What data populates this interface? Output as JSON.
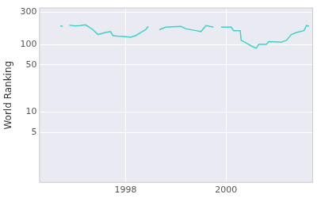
{
  "chart_data": {
    "type": "line",
    "y_label": "World Ranking",
    "log": "y",
    "grid": true,
    "color": "#40d0c8",
    "x": [
      1996.7,
      1996.75,
      1996.8,
      1996.88,
      1997.0,
      1997.1,
      1997.2,
      1997.25,
      1997.35,
      1997.45,
      1997.6,
      1997.7,
      1997.75,
      1997.85,
      1998.0,
      1998.1,
      1998.2,
      1998.3,
      1998.4,
      1998.45,
      1998.55,
      1998.67,
      1998.8,
      1999.1,
      1999.2,
      1999.4,
      1999.5,
      1999.6,
      1999.75,
      1999.82,
      1999.9,
      2000.1,
      2000.15,
      2000.28,
      2000.3,
      2000.45,
      2000.5,
      2000.6,
      2000.65,
      2000.8,
      2000.85,
      2001.1,
      2001.2,
      2001.3,
      2001.4,
      2001.55,
      2001.6,
      2001.65
    ],
    "values": [
      188,
      185,
      null,
      192,
      188,
      190,
      195,
      185,
      165,
      140,
      150,
      155,
      135,
      132,
      130,
      128,
      135,
      150,
      165,
      185,
      null,
      165,
      180,
      185,
      170,
      160,
      155,
      190,
      180,
      null,
      180,
      180,
      160,
      160,
      115,
      100,
      95,
      88,
      100,
      100,
      110,
      108,
      115,
      140,
      150,
      160,
      190,
      185
    ],
    "xlim": [
      1996.28,
      2001.73
    ],
    "xticks": [
      1998,
      2000
    ],
    "ylim": [
      0.9,
      350
    ],
    "yticks": [
      5,
      10,
      50,
      100,
      300
    ]
  }
}
